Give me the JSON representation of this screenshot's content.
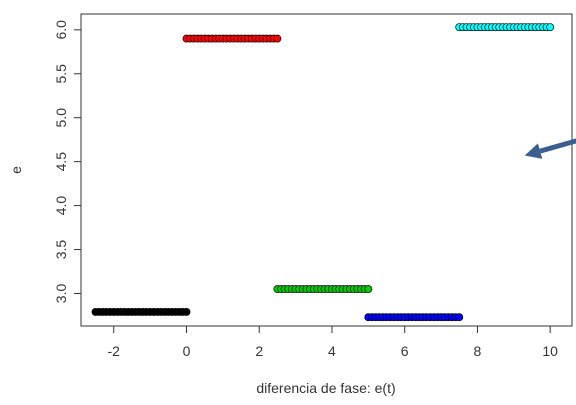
{
  "chart_data": {
    "type": "scatter",
    "title": "",
    "xlabel": "diferencia de fase: e(t)",
    "ylabel": "e",
    "xlim": [
      -2.9,
      10.6
    ],
    "ylim": [
      2.63,
      6.18
    ],
    "xticks": [
      -2,
      0,
      2,
      4,
      6,
      8,
      10
    ],
    "yticks": [
      3.0,
      3.5,
      4.0,
      4.5,
      5.0,
      5.5,
      6.0
    ],
    "xtick_labels": [
      "-2",
      "0",
      "2",
      "4",
      "6",
      "8",
      "10"
    ],
    "ytick_labels": [
      "3.0",
      "3.5",
      "4.0",
      "4.5",
      "5.0",
      "5.5",
      "6.0"
    ],
    "grid": false,
    "series": [
      {
        "color": "#000000",
        "x_start": -2.5,
        "x_end": 0.0,
        "y": 2.79,
        "points": 26
      },
      {
        "color": "#ff0000",
        "x_start": 0.0,
        "x_end": 2.5,
        "y": 5.9,
        "points": 26
      },
      {
        "color": "#00cc00",
        "x_start": 2.5,
        "x_end": 5.0,
        "y": 3.05,
        "points": 26
      },
      {
        "color": "#0000ff",
        "x_start": 5.0,
        "x_end": 7.5,
        "y": 2.73,
        "points": 26
      },
      {
        "color": "#00ffff",
        "x_start": 7.5,
        "x_end": 10.0,
        "y": 6.03,
        "points": 26
      }
    ],
    "annotation": {
      "type": "arrow",
      "color": "#3a5f8f",
      "from": [
        11.0,
        4.77
      ],
      "to": [
        9.3,
        4.57
      ]
    }
  }
}
